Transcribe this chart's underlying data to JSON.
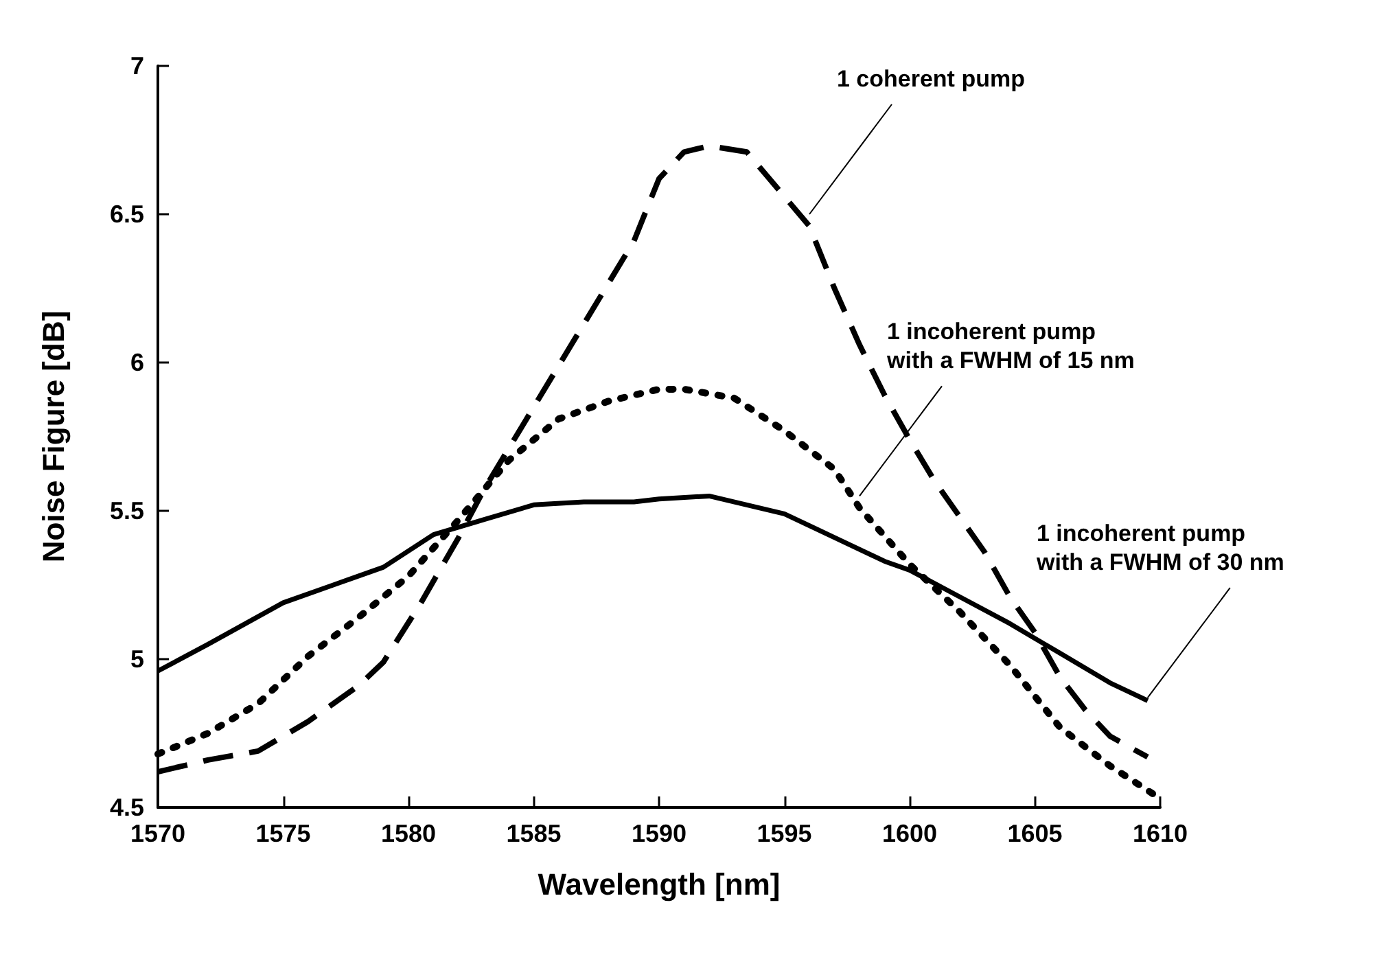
{
  "chart_data": {
    "type": "line",
    "xlabel": "Wavelength [nm]",
    "ylabel": "Noise Figure [dB]",
    "xlim": [
      1570,
      1610
    ],
    "ylim": [
      4.5,
      7
    ],
    "xticks": [
      1570,
      1575,
      1580,
      1585,
      1590,
      1595,
      1600,
      1605,
      1610
    ],
    "yticks": [
      4.5,
      5,
      5.5,
      6,
      6.5,
      7
    ],
    "grid": false,
    "marker": "none",
    "series": [
      {
        "color": "#000000",
        "line_style": "dashed",
        "x": [
          1570,
          1572,
          1574,
          1576,
          1578,
          1579,
          1580.5,
          1582,
          1583,
          1585,
          1587,
          1589,
          1590,
          1591,
          1592,
          1593.5,
          1595,
          1596,
          1597,
          1598,
          1599,
          1600,
          1601,
          1602,
          1603,
          1604,
          1605,
          1606,
          1607,
          1608,
          1609.5
        ],
        "values": [
          4.62,
          4.66,
          4.69,
          4.79,
          4.91,
          4.99,
          5.19,
          5.41,
          5.57,
          5.85,
          6.13,
          6.41,
          6.62,
          6.71,
          6.73,
          6.71,
          6.56,
          6.46,
          6.25,
          6.06,
          5.89,
          5.74,
          5.6,
          5.48,
          5.36,
          5.21,
          5.09,
          4.94,
          4.83,
          4.74,
          4.67
        ]
      },
      {
        "color": "#000000",
        "line_style": "dotted",
        "x": [
          1570,
          1572,
          1574,
          1576,
          1578,
          1580,
          1582,
          1584,
          1586,
          1588,
          1590,
          1591,
          1593,
          1595,
          1597,
          1598,
          1600,
          1602,
          1604,
          1606,
          1608,
          1610
        ],
        "values": [
          4.68,
          4.75,
          4.85,
          5.01,
          5.14,
          5.28,
          5.47,
          5.67,
          5.81,
          5.87,
          5.91,
          5.91,
          5.88,
          5.77,
          5.64,
          5.51,
          5.32,
          5.16,
          4.98,
          4.77,
          4.64,
          4.53
        ]
      },
      {
        "color": "#000000",
        "line_style": "solid",
        "x": [
          1570,
          1572,
          1575,
          1577,
          1579,
          1581,
          1583,
          1585,
          1587,
          1589,
          1590,
          1592,
          1595,
          1597,
          1599,
          1600,
          1602,
          1604,
          1606,
          1608,
          1609.5
        ],
        "values": [
          4.96,
          5.05,
          5.19,
          5.25,
          5.31,
          5.42,
          5.47,
          5.52,
          5.53,
          5.53,
          5.54,
          5.55,
          5.49,
          5.41,
          5.33,
          5.3,
          5.21,
          5.12,
          5.02,
          4.92,
          4.86
        ]
      }
    ],
    "annotations": [
      {
        "text": "1 coherent pump",
        "x": 1596,
        "y": 6.5
      },
      {
        "text": "1 incoherent pump\nwith a FWHM of 15 nm",
        "x": 1598,
        "y": 5.55
      },
      {
        "text": "1 incoherent pump\nwith a FWHM of 30 nm",
        "x": 1609.5,
        "y": 4.87
      }
    ]
  }
}
